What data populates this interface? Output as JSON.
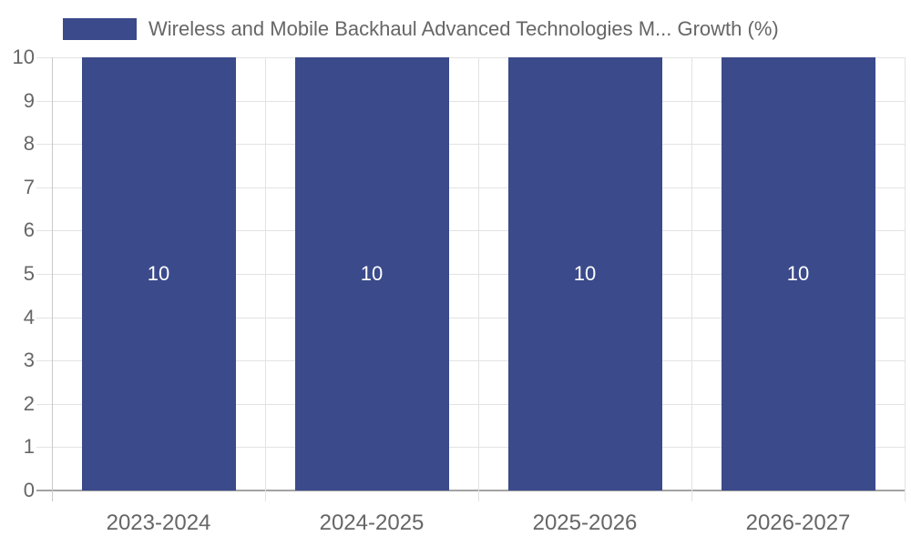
{
  "legend": {
    "label": "Wireless and Mobile Backhaul Advanced Technologies M... Growth (%)"
  },
  "chart_data": {
    "type": "bar",
    "title": "Wireless and Mobile Backhaul Advanced Technologies M... Growth (%)",
    "categories": [
      "2023-2024",
      "2024-2025",
      "2025-2026",
      "2026-2027"
    ],
    "values": [
      10,
      10,
      10,
      10
    ],
    "value_labels": [
      "10",
      "10",
      "10",
      "10"
    ],
    "xlabel": "",
    "ylabel": "",
    "ylim": [
      0,
      10
    ],
    "yticks": [
      0,
      1,
      2,
      3,
      4,
      5,
      6,
      7,
      8,
      9,
      10
    ],
    "grid": true,
    "legend_position": "top",
    "colors": {
      "bar": "#3b4a8b",
      "value_label": "#ffffff",
      "text": "#666666",
      "grid": "#e3e3e3",
      "axis": "#a3a3a3",
      "axis_minor": "#c9c9c9"
    }
  }
}
